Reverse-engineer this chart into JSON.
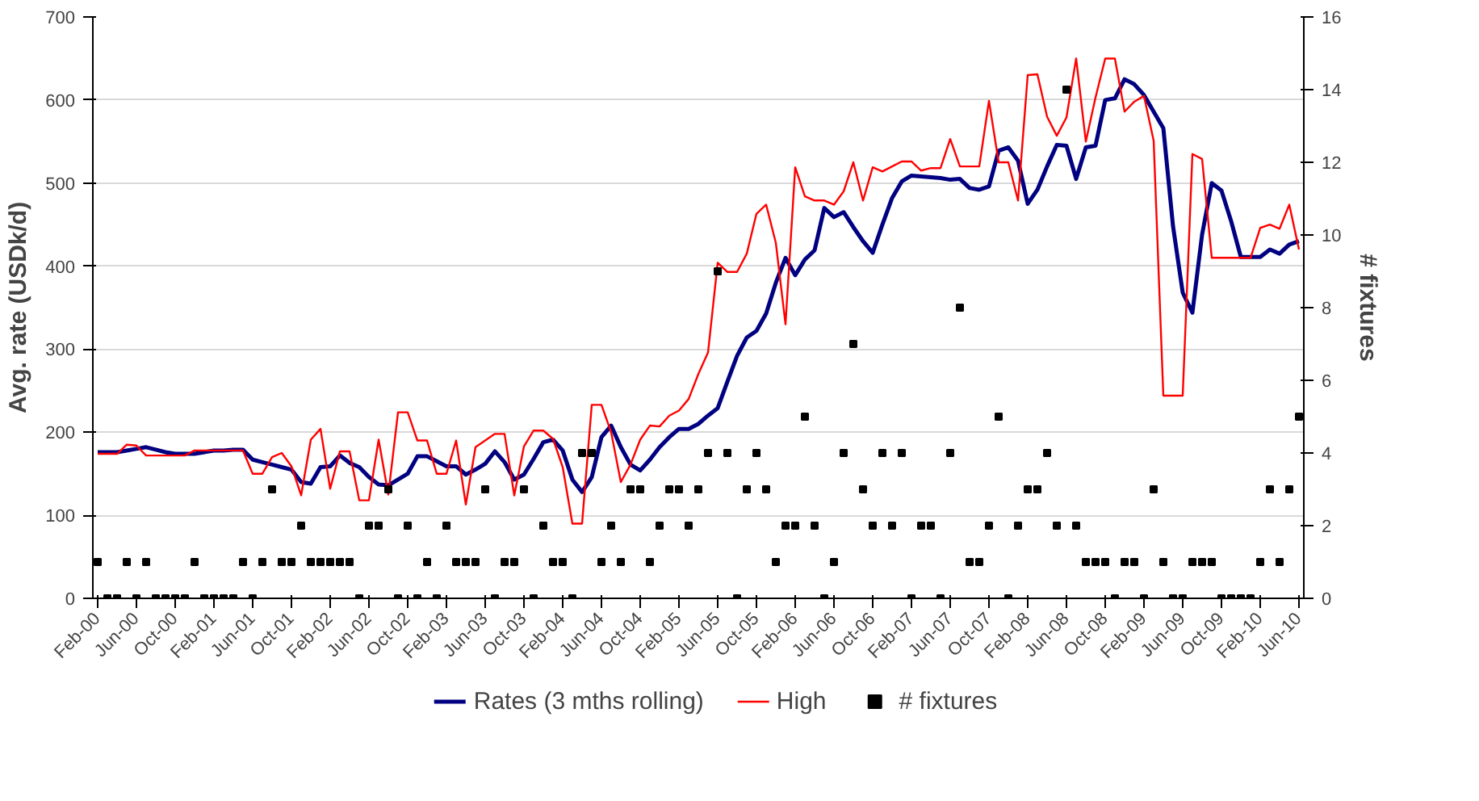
{
  "chart_data": {
    "type": "line",
    "ylabel": "Avg. rate (USDk/d)",
    "y2label": "# fixtures",
    "categories": [
      "Feb-00",
      null,
      null,
      null,
      "Jun-00",
      null,
      null,
      null,
      "Oct-00",
      null,
      null,
      null,
      "Feb-01",
      null,
      null,
      null,
      "Jun-01",
      null,
      null,
      null,
      "Oct-01",
      null,
      null,
      null,
      "Feb-02",
      null,
      null,
      null,
      "Jun-02",
      null,
      null,
      null,
      "Oct-02",
      null,
      null,
      null,
      "Feb-03",
      null,
      null,
      null,
      "Jun-03",
      null,
      null,
      null,
      "Oct-03",
      null,
      null,
      null,
      "Feb-04",
      null,
      null,
      null,
      "Jun-04",
      null,
      null,
      null,
      "Oct-04",
      null,
      null,
      null,
      "Feb-05",
      null,
      null,
      null,
      "Jun-05",
      null,
      null,
      null,
      "Oct-05",
      null,
      null,
      null,
      "Feb-06",
      null,
      null,
      null,
      "Jun-06",
      null,
      null,
      null,
      "Oct-06",
      null,
      null,
      null,
      "Feb-07",
      null,
      null,
      null,
      "Jun-07",
      null,
      null,
      null,
      "Oct-07",
      null,
      null,
      null,
      "Feb-08",
      null,
      null,
      null,
      "Jun-08",
      null,
      null,
      null,
      "Oct-08",
      null,
      null,
      null,
      "Feb-09",
      null,
      null,
      null,
      "Jun-09",
      null,
      null,
      null,
      "Oct-09",
      null,
      null,
      null,
      "Feb-10",
      null,
      null,
      null,
      "Jun-10"
    ],
    "series": [
      {
        "name": "Rates (3 mths rolling)",
        "color": "#000080",
        "values": [
          176,
          176,
          176,
          178,
          180,
          182,
          179,
          176,
          174,
          174,
          174,
          176,
          178,
          178,
          179,
          179,
          167,
          164,
          161,
          158,
          155,
          140,
          138,
          158,
          159,
          172,
          163,
          158,
          146,
          137,
          136,
          143,
          150,
          171,
          171,
          165,
          159,
          159,
          149,
          155,
          162,
          177,
          164,
          143,
          149,
          168,
          188,
          191,
          178,
          143,
          128,
          146,
          194,
          208,
          182,
          161,
          154,
          167,
          182,
          194,
          204,
          204,
          210,
          220,
          229,
          261,
          292,
          314,
          322,
          343,
          380,
          410,
          389,
          408,
          419,
          470,
          459,
          465,
          447,
          430,
          416,
          450,
          482,
          502,
          509,
          508,
          507,
          506,
          504,
          505,
          494,
          492,
          496,
          539,
          543,
          527,
          475,
          492,
          520,
          546,
          545,
          505,
          543,
          545,
          600,
          602,
          625,
          619,
          606,
          586,
          566,
          448,
          368,
          344,
          438,
          500,
          491,
          454,
          411,
          411,
          411,
          420,
          415,
          426,
          430
        ]
      },
      {
        "name": "High",
        "color": "#ff0000",
        "values": [
          174,
          174,
          174,
          185,
          184,
          172,
          172,
          172,
          172,
          172,
          178,
          178,
          178,
          178,
          178,
          178,
          150,
          150,
          170,
          175,
          159,
          124,
          191,
          204,
          132,
          177,
          177,
          118,
          118,
          191,
          125,
          224,
          224,
          190,
          190,
          150,
          150,
          190,
          113,
          182,
          190,
          198,
          198,
          124,
          183,
          202,
          202,
          192,
          158,
          90,
          90,
          233,
          233,
          200,
          140,
          161,
          191,
          208,
          207,
          220,
          226,
          240,
          270,
          296,
          404,
          393,
          393,
          415,
          463,
          474,
          428,
          330,
          519,
          484,
          479,
          479,
          474,
          490,
          525,
          479,
          519,
          514,
          520,
          526,
          526,
          515,
          518,
          518,
          553,
          520,
          520,
          520,
          599,
          525,
          525,
          479,
          630,
          631,
          580,
          557,
          579,
          650,
          550,
          603,
          650,
          650,
          586,
          598,
          605,
          551,
          244,
          244,
          244,
          535,
          529,
          410,
          410,
          410,
          410,
          410,
          446,
          450,
          445,
          474,
          420
        ]
      },
      {
        "name": "# fixtures",
        "type": "scatter",
        "axis": "y2",
        "marker": "square",
        "color": "#000000",
        "values": [
          1,
          0,
          0,
          1,
          0,
          1,
          0,
          0,
          0,
          0,
          1,
          0,
          0,
          0,
          0,
          1,
          0,
          1,
          3,
          1,
          1,
          2,
          1,
          1,
          1,
          1,
          1,
          0,
          2,
          2,
          3,
          0,
          2,
          0,
          1,
          0,
          2,
          1,
          1,
          1,
          3,
          0,
          1,
          1,
          3,
          0,
          2,
          1,
          1,
          0,
          4,
          4,
          1,
          2,
          1,
          3,
          3,
          1,
          2,
          3,
          3,
          2,
          3,
          4,
          9,
          4,
          0,
          3,
          4,
          3,
          1,
          2,
          2,
          5,
          2,
          0,
          1,
          4,
          7,
          3,
          2,
          4,
          2,
          4,
          0,
          2,
          2,
          0,
          4,
          8,
          1,
          1,
          2,
          5,
          0,
          2,
          3,
          3,
          4,
          2,
          14,
          2,
          1,
          1,
          1,
          0,
          1,
          1,
          0,
          3,
          1,
          0,
          0,
          1,
          1,
          1,
          0,
          0,
          0,
          0,
          1,
          3,
          1,
          3,
          5
        ]
      }
    ],
    "ylim": [
      0,
      700
    ],
    "yticks": [
      0,
      100,
      200,
      300,
      400,
      500,
      600,
      700
    ],
    "y2lim": [
      0,
      16
    ],
    "y2ticks": [
      0,
      2,
      4,
      6,
      8,
      10,
      12,
      14,
      16
    ],
    "grid": "y",
    "legend": "bottom"
  }
}
